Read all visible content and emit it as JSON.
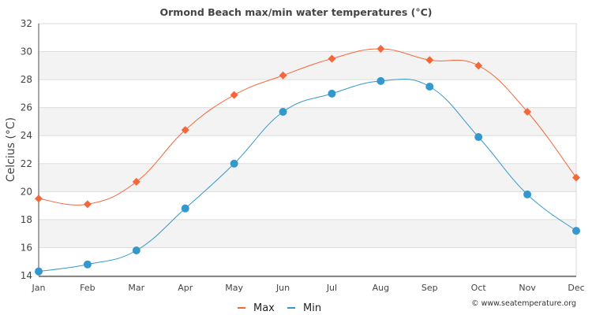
{
  "chart_data": {
    "type": "line",
    "title": "Ormond Beach max/min water temperatures (°C)",
    "xlabel": "",
    "ylabel": "Celcius (°C)",
    "categories": [
      "Jan",
      "Feb",
      "Mar",
      "Apr",
      "May",
      "Jun",
      "Jul",
      "Aug",
      "Sep",
      "Oct",
      "Nov",
      "Dec"
    ],
    "ylim": [
      14,
      32
    ],
    "yticks": [
      14,
      16,
      18,
      20,
      22,
      24,
      26,
      28,
      30,
      32
    ],
    "grid": true,
    "legend_position": "bottom-center",
    "series": [
      {
        "name": "Max",
        "color": "#f4673a",
        "marker": "diamond",
        "values": [
          19.5,
          19.1,
          20.7,
          24.4,
          26.9,
          28.3,
          29.5,
          30.2,
          29.4,
          29.0,
          25.7,
          21.0
        ]
      },
      {
        "name": "Min",
        "color": "#3498cc",
        "marker": "circle",
        "values": [
          14.3,
          14.8,
          15.8,
          18.8,
          22.0,
          25.7,
          27.0,
          27.9,
          27.5,
          23.9,
          19.8,
          17.2
        ]
      }
    ],
    "credit": "© www.seatemperature.org"
  }
}
